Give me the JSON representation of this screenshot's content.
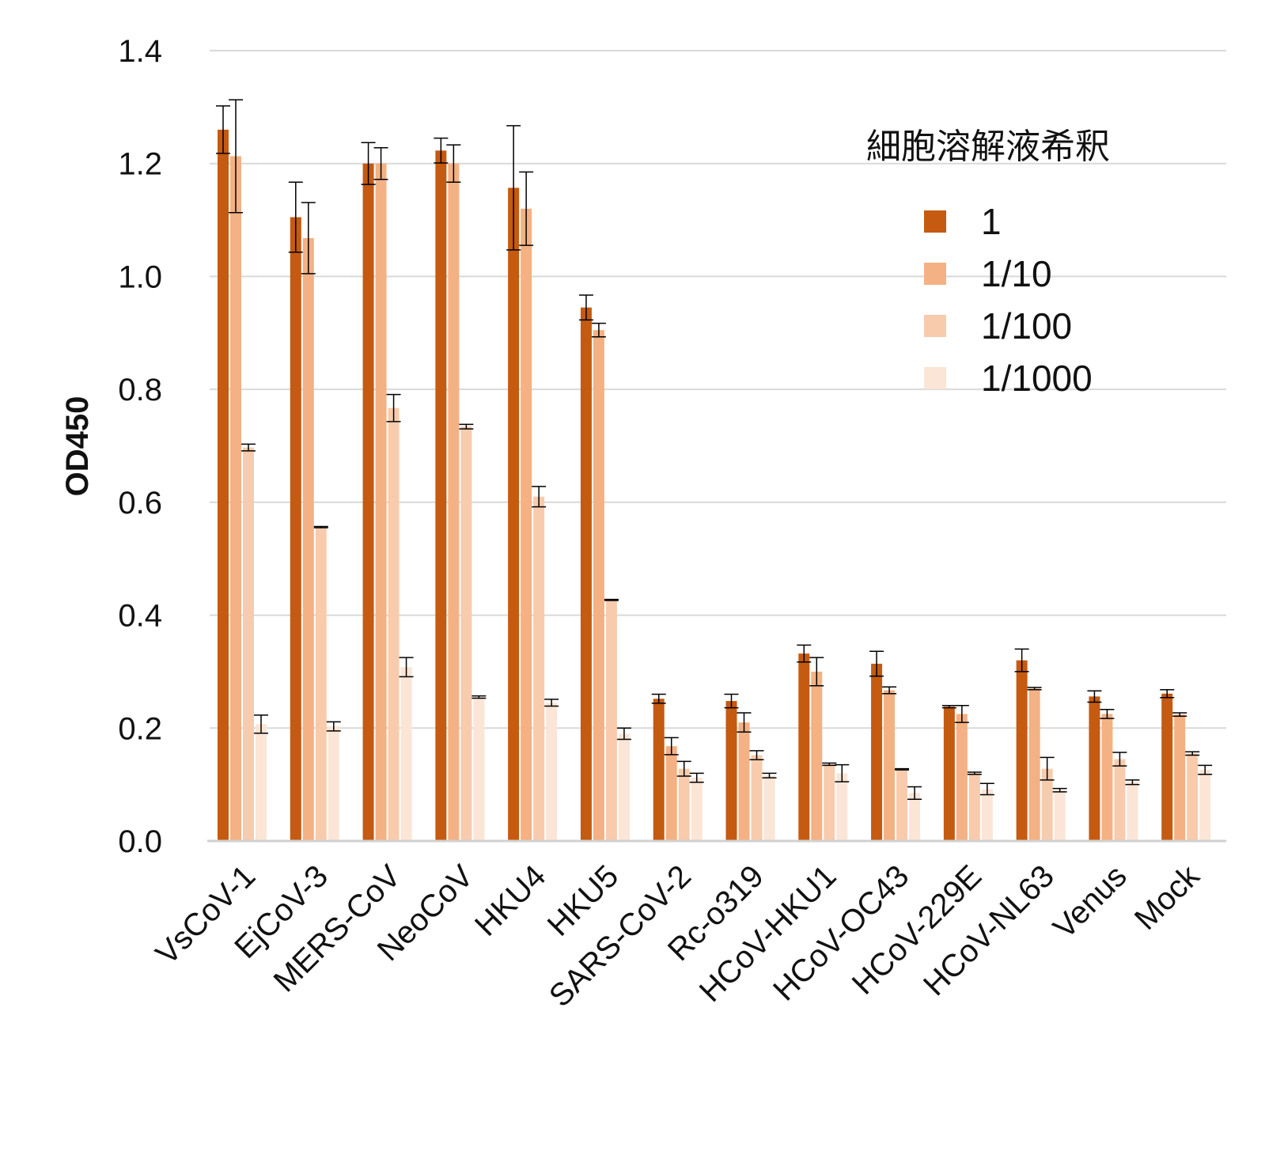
{
  "chart_data": {
    "type": "bar",
    "title": "",
    "xlabel": "",
    "ylabel": "OD450",
    "ylim": [
      0,
      1.4
    ],
    "yticks": [
      "0.0",
      "0.2",
      "0.4",
      "0.6",
      "0.8",
      "1.0",
      "1.2",
      "1.4"
    ],
    "grid": true,
    "legend": {
      "title": "細胞溶解液希釈",
      "placement": "top-right"
    },
    "categories": [
      "VsCoV-1",
      "EjCoV-3",
      "MERS-CoV",
      "NeoCoV",
      "HKU4",
      "HKU5",
      "SARS-CoV-2",
      "Rc-o319",
      "HCoV-HKU1",
      "HCoV-OC43",
      "HCoV-229E",
      "HCoV-NL63",
      "Venus",
      "Mock"
    ],
    "series": [
      {
        "name": "1",
        "color": "#C55A11",
        "values": [
          1.26,
          1.105,
          1.2,
          1.223,
          1.157,
          0.945,
          0.252,
          0.248,
          0.332,
          0.314,
          0.238,
          0.32,
          0.256,
          0.261
        ],
        "errors": [
          0.042,
          0.062,
          0.037,
          0.022,
          0.11,
          0.022,
          0.008,
          0.012,
          0.015,
          0.022,
          0.002,
          0.02,
          0.01,
          0.007
        ]
      },
      {
        "name": "1/10",
        "color": "#F4B183",
        "values": [
          1.213,
          1.068,
          1.2,
          1.2,
          1.12,
          0.905,
          0.168,
          0.21,
          0.3,
          0.267,
          0.225,
          0.27,
          0.225,
          0.224
        ],
        "errors": [
          0.1,
          0.063,
          0.028,
          0.033,
          0.065,
          0.012,
          0.015,
          0.017,
          0.025,
          0.006,
          0.015,
          0.002,
          0.008,
          0.003
        ]
      },
      {
        "name": "1/100",
        "color": "#F8CBAD",
        "values": [
          0.697,
          0.556,
          0.767,
          0.734,
          0.61,
          0.427,
          0.128,
          0.152,
          0.136,
          0.127,
          0.12,
          0.128,
          0.145,
          0.155
        ],
        "errors": [
          0.006,
          0.001,
          0.024,
          0.004,
          0.018,
          0.001,
          0.013,
          0.008,
          0.002,
          0.001,
          0.002,
          0.02,
          0.012,
          0.003
        ]
      },
      {
        "name": "1/1000",
        "color": "#FBE5D6",
        "values": [
          0.207,
          0.203,
          0.308,
          0.255,
          0.245,
          0.19,
          0.112,
          0.116,
          0.12,
          0.085,
          0.092,
          0.09,
          0.104,
          0.126
        ],
        "errors": [
          0.016,
          0.008,
          0.017,
          0.002,
          0.006,
          0.01,
          0.008,
          0.004,
          0.015,
          0.011,
          0.01,
          0.003,
          0.004,
          0.008
        ]
      }
    ]
  }
}
